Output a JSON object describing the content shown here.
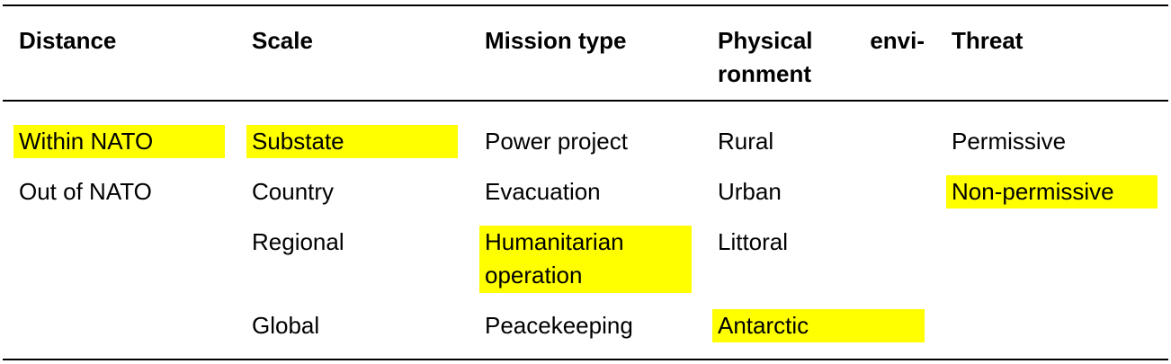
{
  "table": {
    "headers": {
      "distance": "Distance",
      "scale": "Scale",
      "mission_type": "Mission type",
      "physical_environment_line1": "Physical envi-",
      "physical_environment_line2": "ronment",
      "threat": "Threat"
    },
    "highlight_color": "#ffff00",
    "columns": {
      "distance": [
        {
          "text": "Within NATO",
          "highlighted": true
        },
        {
          "text": "Out of NATO",
          "highlighted": false
        }
      ],
      "scale": [
        {
          "text": "Substate",
          "highlighted": true
        },
        {
          "text": "Country",
          "highlighted": false
        },
        {
          "text": "Regional",
          "highlighted": false
        },
        {
          "text": "Global",
          "highlighted": false
        }
      ],
      "mission_type": [
        {
          "text": "Power project",
          "highlighted": false
        },
        {
          "text": "Evacuation",
          "highlighted": false
        },
        {
          "text": "Humanitarian operation",
          "highlighted": true
        },
        {
          "text": "Peacekeeping",
          "highlighted": false
        }
      ],
      "physical_environment": [
        {
          "text": "Rural",
          "highlighted": false
        },
        {
          "text": "Urban",
          "highlighted": false
        },
        {
          "text": "Littoral",
          "highlighted": false
        },
        {
          "text": "Antarctic",
          "highlighted": true
        }
      ],
      "threat": [
        {
          "text": "Permissive",
          "highlighted": false
        },
        {
          "text": "Non-permissive",
          "highlighted": true
        }
      ]
    }
  }
}
